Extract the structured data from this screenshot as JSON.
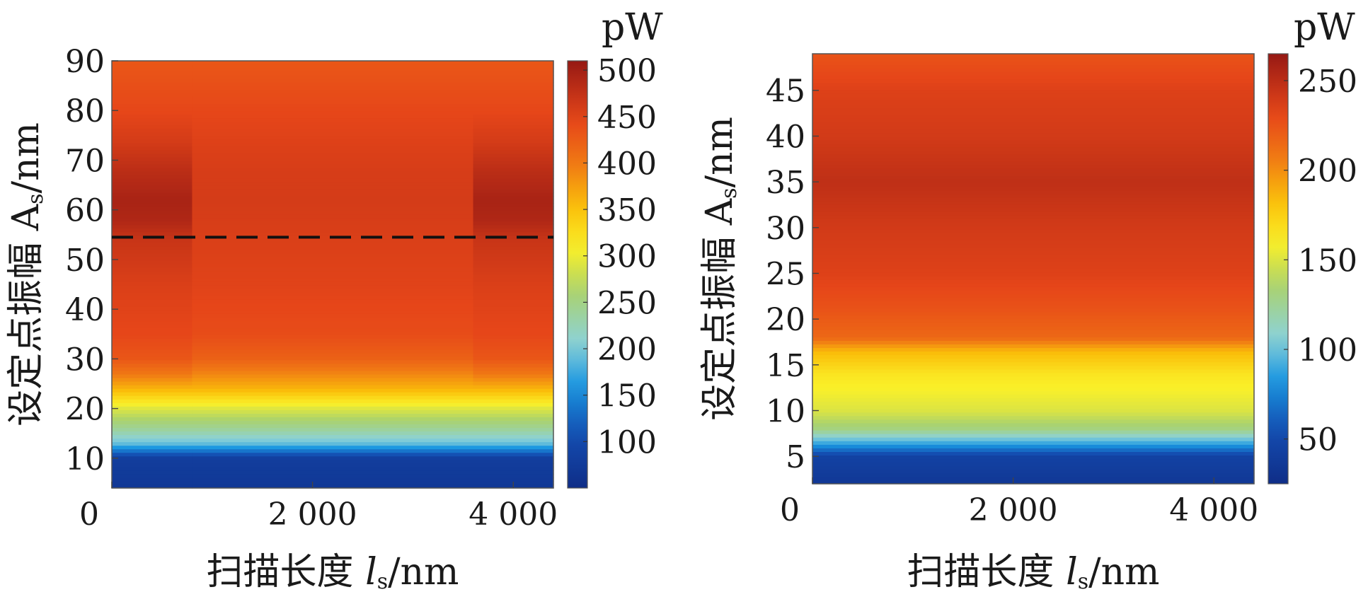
{
  "chart_data": [
    {
      "type": "heatmap",
      "xlabel_prefix": "扫描长度 ",
      "xlabel_var": "l",
      "xlabel_sub": "s",
      "xlabel_unit": "/nm",
      "ylabel_prefix": "设定点振幅 ",
      "ylabel_var": "A",
      "ylabel_sub": "s",
      "ylabel_unit": "/nm",
      "xlim": [
        0,
        4400
      ],
      "ylim": [
        4,
        90
      ],
      "xticks": [
        0,
        2000,
        4000
      ],
      "xtick_labels": [
        "0",
        "2 000",
        "4 000"
      ],
      "yticks": [
        10,
        20,
        30,
        40,
        50,
        60,
        70,
        80,
        90
      ],
      "ytick_labels": [
        "10",
        "20",
        "30",
        "40",
        "50",
        "60",
        "70",
        "80",
        "90"
      ],
      "colorbar_unit": "pW",
      "colorbar_range": [
        50,
        510
      ],
      "colorbar_ticks": [
        100,
        150,
        200,
        250,
        300,
        350,
        400,
        450,
        500
      ],
      "colorbar_tick_labels": [
        "100",
        "150",
        "200",
        "250",
        "300",
        "350",
        "400",
        "450",
        "500"
      ],
      "dashed_line_y": 54.5,
      "grid": false,
      "z_profile": {
        "columns": [
          {
            "x_from": 0,
            "x_to": 800,
            "A": [
              4,
              10,
              13,
              16,
              20,
              24,
              27,
              30,
              35,
              45,
              54,
              58,
              62,
              68,
              74,
              80,
              90
            ],
            "P": [
              70,
              80,
              190,
              240,
              290,
              360,
              400,
              430,
              445,
              455,
              470,
              490,
              495,
              480,
              460,
              445,
              430
            ]
          },
          {
            "x_from": 800,
            "x_to": 3600,
            "A": [
              4,
              10,
              13,
              16,
              20,
              24,
              27,
              30,
              35,
              45,
              54,
              58,
              62,
              68,
              74,
              80,
              90
            ],
            "P": [
              70,
              80,
              190,
              240,
              290,
              360,
              390,
              420,
              440,
              450,
              455,
              458,
              460,
              458,
              452,
              445,
              430
            ]
          },
          {
            "x_from": 3600,
            "x_to": 4400,
            "A": [
              4,
              10,
              13,
              16,
              20,
              24,
              27,
              30,
              35,
              45,
              54,
              58,
              62,
              68,
              74,
              80,
              90
            ],
            "P": [
              70,
              80,
              190,
              240,
              290,
              360,
              400,
              430,
              445,
              455,
              470,
              490,
              495,
              480,
              460,
              445,
              430
            ]
          }
        ]
      }
    },
    {
      "type": "heatmap",
      "xlabel_prefix": "扫描长度 ",
      "xlabel_var": "l",
      "xlabel_sub": "s",
      "xlabel_unit": "/nm",
      "ylabel_prefix": "设定点振幅 ",
      "ylabel_var": "A",
      "ylabel_sub": "s",
      "ylabel_unit": "/nm",
      "xlim": [
        0,
        4400
      ],
      "ylim": [
        2,
        49
      ],
      "xticks": [
        0,
        2000,
        4000
      ],
      "xtick_labels": [
        "0",
        "2 000",
        "4 000"
      ],
      "yticks": [
        5,
        10,
        15,
        20,
        25,
        30,
        35,
        40,
        45
      ],
      "ytick_labels": [
        "5",
        "10",
        "15",
        "20",
        "25",
        "30",
        "35",
        "40",
        "45"
      ],
      "colorbar_unit": "pW",
      "colorbar_range": [
        25,
        265
      ],
      "colorbar_ticks": [
        50,
        100,
        150,
        200,
        250
      ],
      "colorbar_tick_labels": [
        "50",
        "100",
        "150",
        "200",
        "250"
      ],
      "grid": false,
      "z_profile": {
        "columns": [
          {
            "x_from": 0,
            "x_to": 4400,
            "A": [
              2,
              5,
              6.5,
              8,
              10,
              14,
              16.5,
              18,
              21,
              25,
              30,
              35,
              40,
              45,
              49
            ],
            "P": [
              35,
              45,
              90,
              130,
              150,
              165,
              185,
              215,
              225,
              235,
              240,
              248,
              240,
              235,
              225
            ]
          }
        ]
      }
    }
  ]
}
